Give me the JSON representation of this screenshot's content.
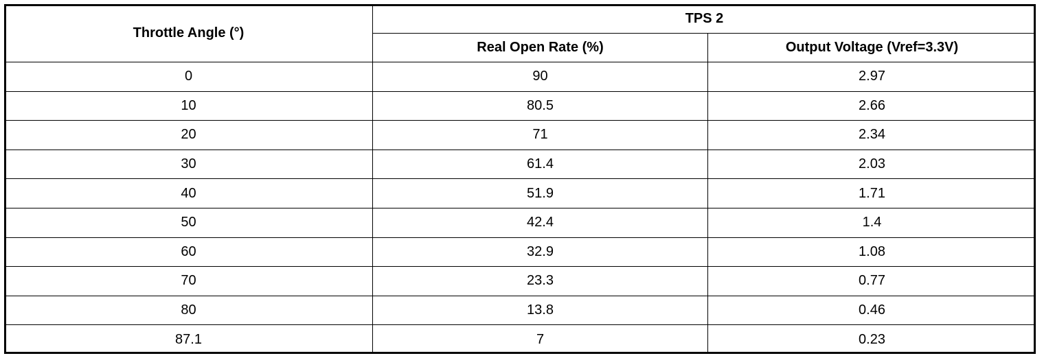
{
  "table": {
    "header": {
      "col1": "Throttle Angle (°)",
      "group": "TPS 2",
      "col2": "Real Open Rate (%)",
      "col3": "Output Voltage (Vref=3.3V)"
    },
    "rows": [
      [
        "0",
        "90",
        "2.97"
      ],
      [
        "10",
        "80.5",
        "2.66"
      ],
      [
        "20",
        "71",
        "2.34"
      ],
      [
        "30",
        "61.4",
        "2.03"
      ],
      [
        "40",
        "51.9",
        "1.71"
      ],
      [
        "50",
        "42.4",
        "1.4"
      ],
      [
        "60",
        "32.9",
        "1.08"
      ],
      [
        "70",
        "23.3",
        "0.77"
      ],
      [
        "80",
        "13.8",
        "0.46"
      ],
      [
        "87.1",
        "7",
        "0.23"
      ]
    ]
  }
}
